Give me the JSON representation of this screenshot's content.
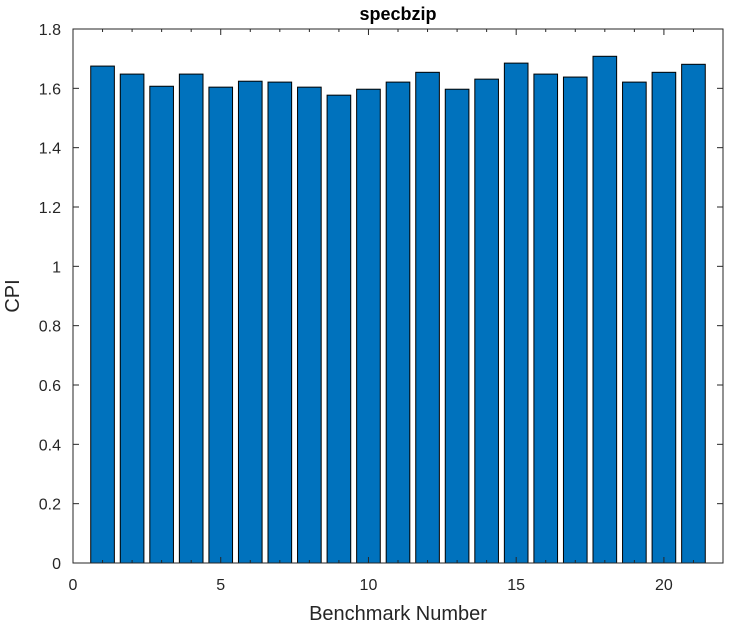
{
  "chart_data": {
    "type": "bar",
    "title": "specbzip",
    "xlabel": "Benchmark Number",
    "ylabel": "CPI",
    "x": [
      1,
      2,
      3,
      4,
      5,
      6,
      7,
      8,
      9,
      10,
      11,
      12,
      13,
      14,
      15,
      16,
      17,
      18,
      19,
      20,
      21
    ],
    "values": [
      1.675,
      1.648,
      1.607,
      1.648,
      1.604,
      1.624,
      1.621,
      1.604,
      1.577,
      1.597,
      1.621,
      1.654,
      1.597,
      1.631,
      1.685,
      1.648,
      1.638,
      1.708,
      1.621,
      1.654,
      1.681
    ],
    "xlim": [
      0,
      22
    ],
    "ylim": [
      0,
      1.8
    ],
    "xticks": [
      "0",
      "5",
      "10",
      "15",
      "20"
    ],
    "yticks": [
      "0",
      "0.2",
      "0.4",
      "0.6",
      "0.8",
      "1",
      "1.2",
      "1.4",
      "1.6",
      "1.8"
    ],
    "bar_color": "#0072BD",
    "grid": false,
    "legend": false
  }
}
